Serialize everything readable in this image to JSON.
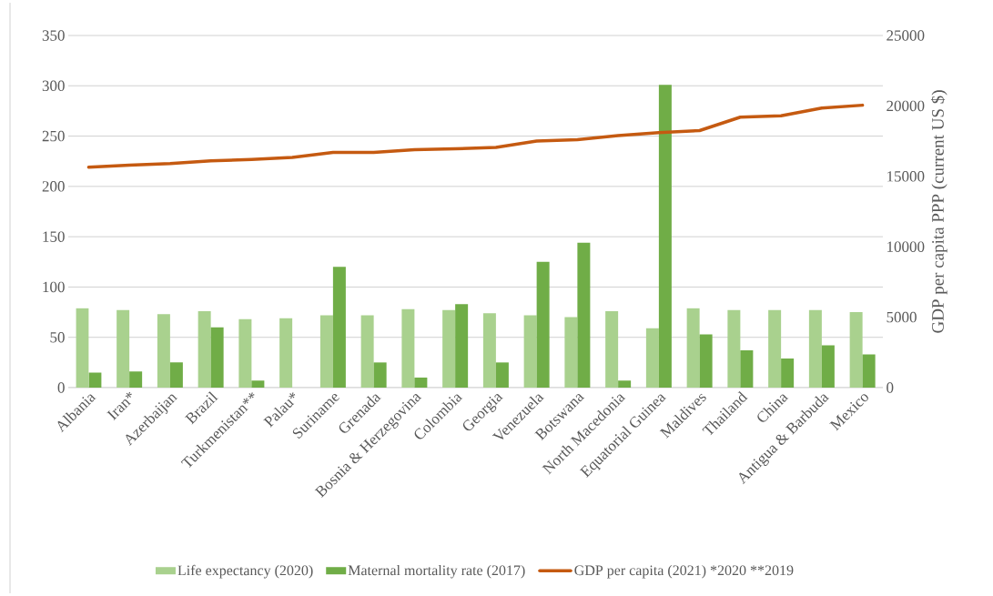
{
  "chart_data": {
    "type": "bar",
    "y2label": "GDP per capita PPP (current US $)",
    "categories": [
      "Albania",
      "Iran*",
      "Azerbaijan",
      "Brazil",
      "Turkmenistan**",
      "Palau*",
      "Suriname",
      "Grenada",
      "Bosnia & Herzegovina",
      "Colombia",
      "Georgia",
      "Venezuela",
      "Botswana",
      "North Macedonia",
      "Equatorial Guinea",
      "Maldives",
      "Thailand",
      "China",
      "Antigua & Barbuda",
      "Mexico"
    ],
    "series": [
      {
        "name": "Life expectancy (2020)",
        "color": "#a9d18e",
        "values": [
          79,
          77,
          73,
          76,
          68,
          69,
          72,
          72,
          78,
          77,
          74,
          72,
          70,
          76,
          59,
          79,
          77,
          77,
          77,
          75
        ]
      },
      {
        "name": "Maternal mortality rate (2017)",
        "color": "#70ad47",
        "values": [
          15,
          16,
          25,
          60,
          7,
          null,
          120,
          25,
          10,
          83,
          25,
          125,
          144,
          7,
          301,
          53,
          37,
          29,
          42,
          33
        ]
      },
      {
        "name": "GDP per capita (2021) *2020 **2019",
        "type": "line",
        "axis": "y2",
        "color": "#c55a11",
        "values": [
          15650,
          15800,
          15900,
          16100,
          16200,
          16350,
          16700,
          16700,
          16900,
          16950,
          17050,
          17500,
          17600,
          17900,
          18100,
          18250,
          19200,
          19300,
          19850,
          20050
        ]
      }
    ],
    "ylim": [
      0,
      350
    ],
    "yticks": [
      0,
      50,
      100,
      150,
      200,
      250,
      300,
      350
    ],
    "y2lim": [
      0,
      25000
    ],
    "y2ticks": [
      0,
      5000,
      10000,
      15000,
      20000,
      25000
    ],
    "grid": "y",
    "legend": "bottom",
    "marker": "none"
  }
}
